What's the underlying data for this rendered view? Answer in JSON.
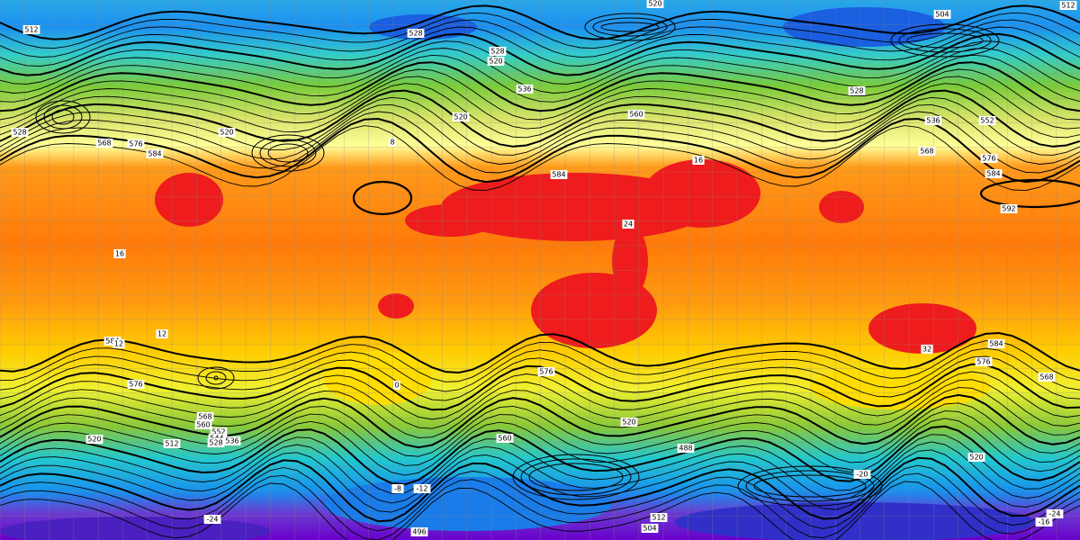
{
  "contour_labels": [
    "512",
    "520",
    "504",
    "512",
    "528",
    "528",
    "520",
    "536",
    "520",
    "528",
    "536",
    "552",
    "560",
    "568",
    "576",
    "584",
    "592",
    "584",
    "576",
    "584",
    "568",
    "520",
    "528",
    "584",
    "576",
    "576",
    "584",
    "576",
    "568",
    "568",
    "560",
    "552",
    "544",
    "536",
    "528",
    "520",
    "512",
    "560",
    "520",
    "488",
    "520",
    "512",
    "504",
    "496",
    "-24",
    "-24",
    "-16",
    "-20",
    "-8",
    "-12",
    "12",
    "12",
    "16",
    "24",
    "32",
    "16",
    "8",
    "0"
  ]
}
